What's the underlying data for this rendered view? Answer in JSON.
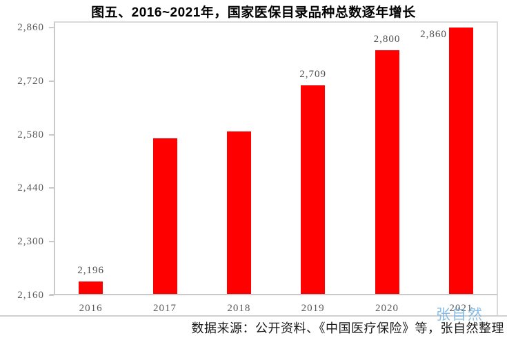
{
  "title": "图五、2016~2021年，国家医保目录品种总数逐年增长",
  "source_note": "数据来源：公开资料、《中国医疗保险》等，张自然整理",
  "watermark": "张自然",
  "colors": {
    "bar": "#FF0000",
    "axis": "#C9C9C9",
    "frame": "#DADADA",
    "tick_label": "#595959",
    "value_label": "#4D4D4D",
    "watermark": "#74B2E2"
  },
  "chart_data": {
    "type": "bar",
    "title": "图五、2016~2021年，国家医保目录品种总数逐年增长",
    "categories": [
      "2016",
      "2017",
      "2018",
      "2019",
      "2020",
      "2021"
    ],
    "values": [
      2196,
      2571,
      2588,
      2709,
      2800,
      2860
    ],
    "value_labels": [
      "2,196",
      null,
      null,
      "2,709",
      "2,800",
      "2,860"
    ],
    "value_label_positions": [
      "above",
      null,
      null,
      "above",
      "above",
      "left"
    ],
    "xlabel": "",
    "ylabel": "",
    "ylim": [
      2160,
      2860
    ],
    "yticks": [
      2160,
      2300,
      2440,
      2580,
      2720,
      2860
    ],
    "ytick_labels": [
      "2,160",
      "2,300",
      "2,440",
      "2,580",
      "2,720",
      "2,860"
    ],
    "grid": false,
    "legend": false,
    "bar_color": "#FF0000"
  }
}
